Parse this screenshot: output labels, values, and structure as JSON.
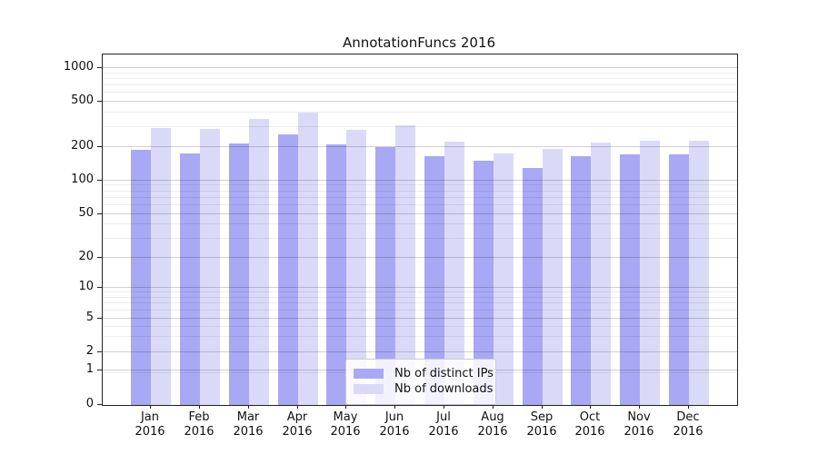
{
  "chart_data": {
    "type": "bar",
    "title": "AnnotationFuncs 2016",
    "categories": [
      "Jan",
      "Feb",
      "Mar",
      "Apr",
      "May",
      "Jun",
      "Jul",
      "Aug",
      "Sep",
      "Oct",
      "Nov",
      "Dec"
    ],
    "year_label": "2016",
    "series": [
      {
        "name": "Nb of distinct IPs",
        "color": "#a8a8f5",
        "values": [
          190,
          175,
          215,
          258,
          210,
          200,
          165,
          150,
          130,
          164,
          172,
          172
        ]
      },
      {
        "name": "Nb of downloads",
        "color": "#dadaf8",
        "values": [
          295,
          290,
          350,
          400,
          285,
          310,
          222,
          176,
          192,
          220,
          228,
          228
        ]
      }
    ],
    "yscale": "symlog",
    "yticks": [
      0,
      1,
      2,
      5,
      10,
      20,
      50,
      100,
      200,
      500,
      1000
    ],
    "ylim": [
      0,
      1000
    ],
    "grid": true,
    "legend_position": "lower center",
    "background": "#ffffff",
    "spine_color": "#222222"
  }
}
